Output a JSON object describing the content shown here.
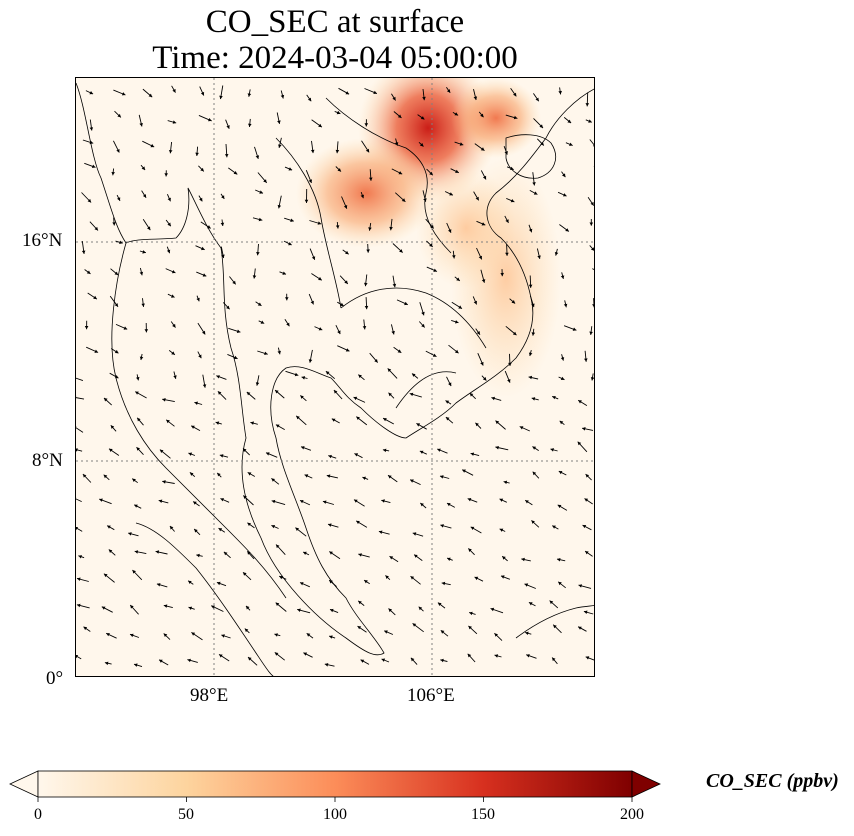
{
  "title_line1": "CO_SEC at surface",
  "title_line2": "Time: 2024-03-04 05:00:00",
  "lat_ticks": [
    "16°N",
    "8°N",
    "0°"
  ],
  "lon_ticks": [
    "98°E",
    "106°E"
  ],
  "colorbar": {
    "label": "CO_SEC (ppbv)",
    "ticks": [
      "0",
      "50",
      "100",
      "150",
      "200"
    ],
    "colors": [
      "#fff7ec",
      "#fdd49e",
      "#fc8d59",
      "#d7301f",
      "#7f0000"
    ],
    "extend": "both"
  },
  "colors": {
    "background": "#fff7ec",
    "coastline": "#000000",
    "gridline": "#808080"
  }
}
